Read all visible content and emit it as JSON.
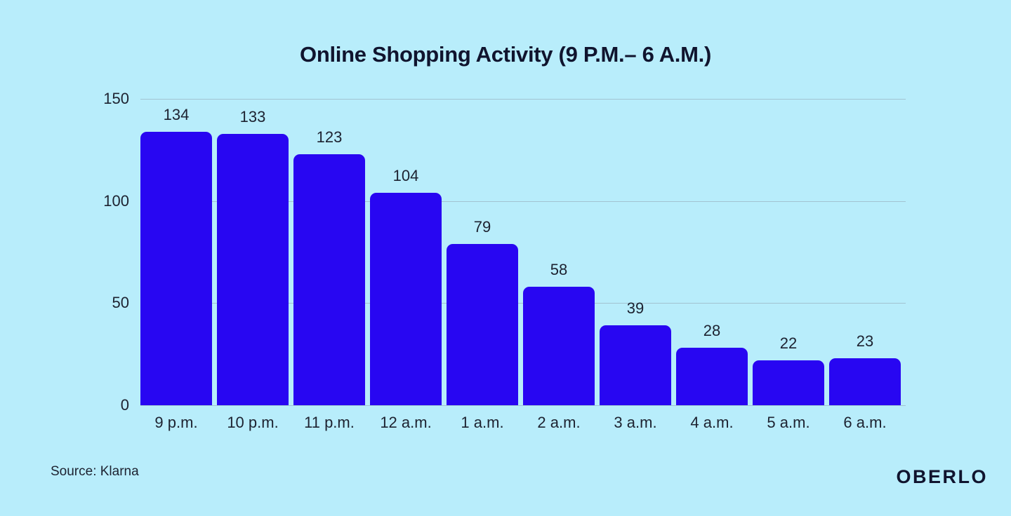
{
  "page": {
    "background_color": "#b8edfb",
    "ink_color": "#10142e",
    "label_color": "#1d2230"
  },
  "chart_data": {
    "type": "bar",
    "title": "Online Shopping Activity (9 P.M.– 6 A.M.)",
    "categories": [
      "9 p.m.",
      "10 p.m.",
      "11 p.m.",
      "12 a.m.",
      "1 a.m.",
      "2 a.m.",
      "3 a.m.",
      "4 a.m.",
      "5 a.m.",
      "6 a.m."
    ],
    "values": [
      134,
      133,
      123,
      104,
      79,
      58,
      39,
      28,
      22,
      23
    ],
    "xlabel": "",
    "ylabel": "",
    "ylim": [
      0,
      150
    ],
    "yticks": [
      0,
      50,
      100,
      150
    ],
    "grid": true,
    "legend": false,
    "bar_color": "#2806f2",
    "gridline_color": "#a2c3d1"
  },
  "footer": {
    "source_label": "Source: Klarna",
    "brand_logo": "OBERLO"
  }
}
